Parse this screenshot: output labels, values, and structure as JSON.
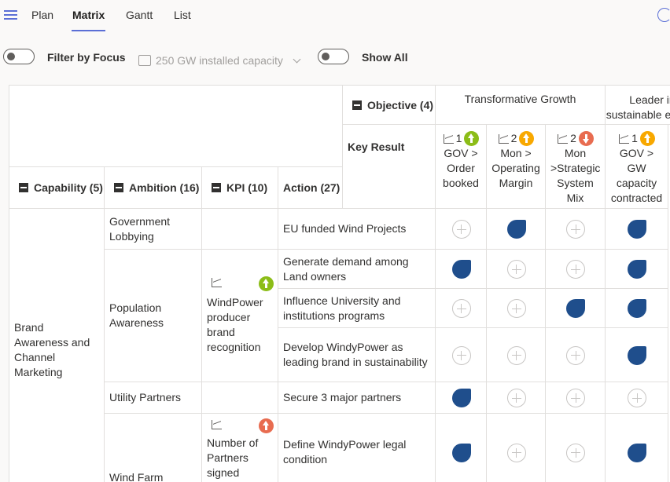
{
  "nav": {
    "tabs": [
      {
        "label": "Plan"
      },
      {
        "label": "Matrix"
      },
      {
        "label": "Gantt"
      },
      {
        "label": "List"
      }
    ],
    "active_tab": "Matrix"
  },
  "filters": {
    "focus_label": "Filter by Focus",
    "capacity_value": "250 GW installed capacity",
    "show_all_label": "Show All"
  },
  "matrix": {
    "objective_header": "Objective (4)",
    "key_result_header": "Key Result",
    "capability_header": "Capability (5)",
    "ambition_header": "Ambition (16)",
    "kpi_header": "KPI (10)",
    "action_header": "Action (27)",
    "objectives": [
      "Transformative Growth",
      "Leader in sustainable energy"
    ],
    "key_results": [
      {
        "count": "1",
        "status": "green",
        "dir": "up",
        "label": "GOV > Order booked"
      },
      {
        "count": "2",
        "status": "yellow",
        "dir": "up",
        "label": "Mon > Operating Margin"
      },
      {
        "count": "2",
        "status": "red",
        "dir": "down",
        "label": "Mon >Strategic System Mix"
      },
      {
        "count": "1",
        "status": "yellow",
        "dir": "up",
        "label": "GOV > GW capacity contracted"
      }
    ],
    "capability": "Brand Awareness and Channel Marketing",
    "ambitions": [
      "Government Lobbying",
      "Population Awareness",
      "Utility Partners",
      "Wind Farm"
    ],
    "kpis": [
      {
        "label": "WindPower producer brand recognition",
        "status": "green"
      },
      {
        "label": "Number of Partners signed",
        "status": "red"
      }
    ],
    "actions": [
      {
        "label": "EU funded Wind Projects",
        "marks": [
          false,
          true,
          false,
          true
        ]
      },
      {
        "label": "Generate demand among Land owners",
        "marks": [
          true,
          false,
          false,
          true
        ]
      },
      {
        "label": "Influence University and institutions programs",
        "marks": [
          false,
          false,
          true,
          true
        ]
      },
      {
        "label": "Develop WindyPower as leading brand in sustainability",
        "marks": [
          false,
          false,
          false,
          true
        ]
      },
      {
        "label": "Secure 3 major partners",
        "marks": [
          true,
          false,
          false,
          false
        ]
      },
      {
        "label": "Define WindyPower legal condition",
        "marks": [
          true,
          false,
          false,
          true
        ]
      }
    ]
  }
}
